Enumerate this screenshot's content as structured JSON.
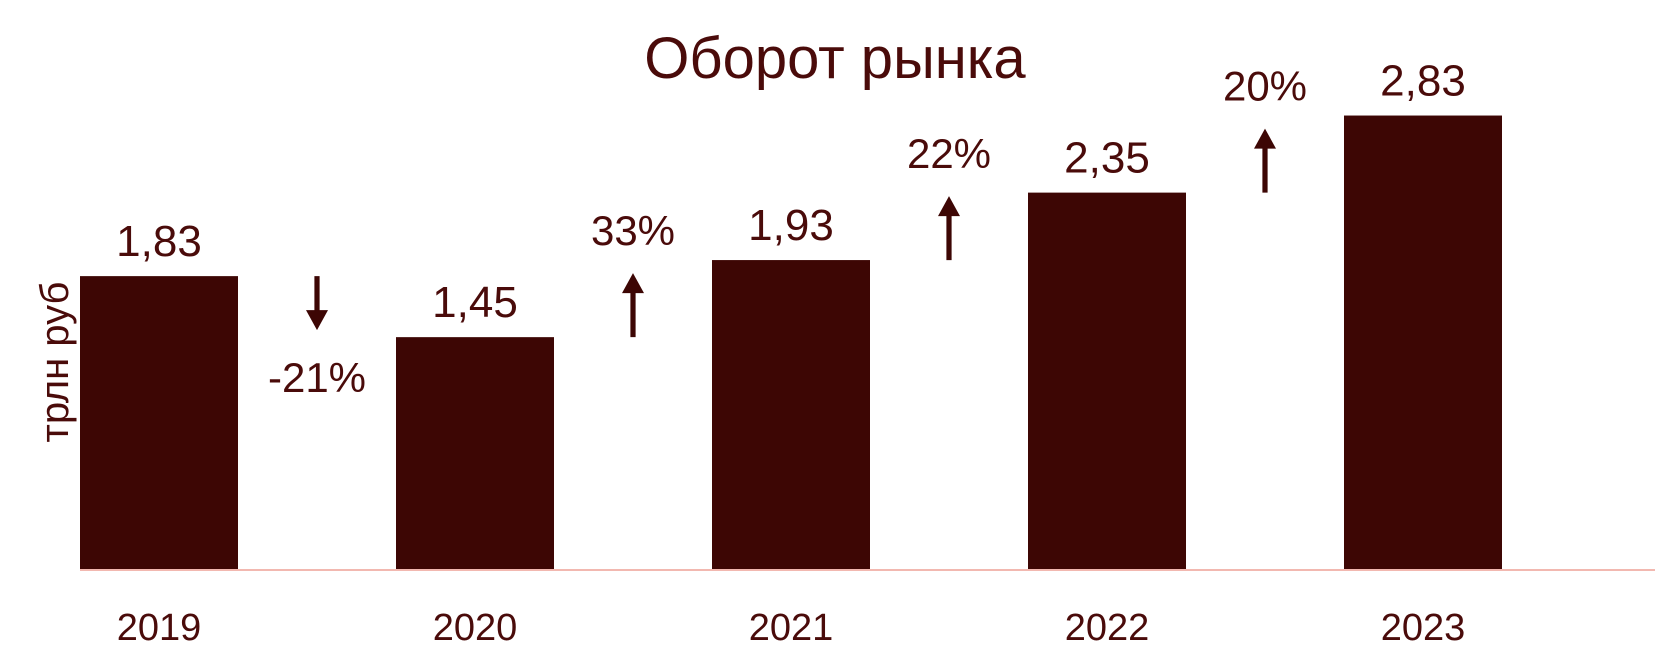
{
  "chart_data": {
    "type": "bar",
    "title": "Оборот рынка",
    "ylabel": "трлн руб",
    "xlabel": "",
    "categories": [
      "2019",
      "2020",
      "2021",
      "2022",
      "2023"
    ],
    "values": [
      1.83,
      1.45,
      1.93,
      2.35,
      2.83
    ],
    "value_labels": [
      "1,83",
      "1,45",
      "1,93",
      "2,35",
      "2,83"
    ],
    "ylim": [
      0,
      3.4
    ],
    "grid": false,
    "changes": [
      {
        "label": "-21%",
        "direction": "down",
        "between": [
          "2019",
          "2020"
        ]
      },
      {
        "label": "33%",
        "direction": "up",
        "between": [
          "2020",
          "2021"
        ]
      },
      {
        "label": "22%",
        "direction": "up",
        "between": [
          "2021",
          "2022"
        ]
      },
      {
        "label": "20%",
        "direction": "up",
        "between": [
          "2022",
          "2023"
        ]
      }
    ],
    "colors": {
      "bar": "#3d0604",
      "text": "#4a0b0a",
      "axis": "#f2b8b0"
    }
  }
}
